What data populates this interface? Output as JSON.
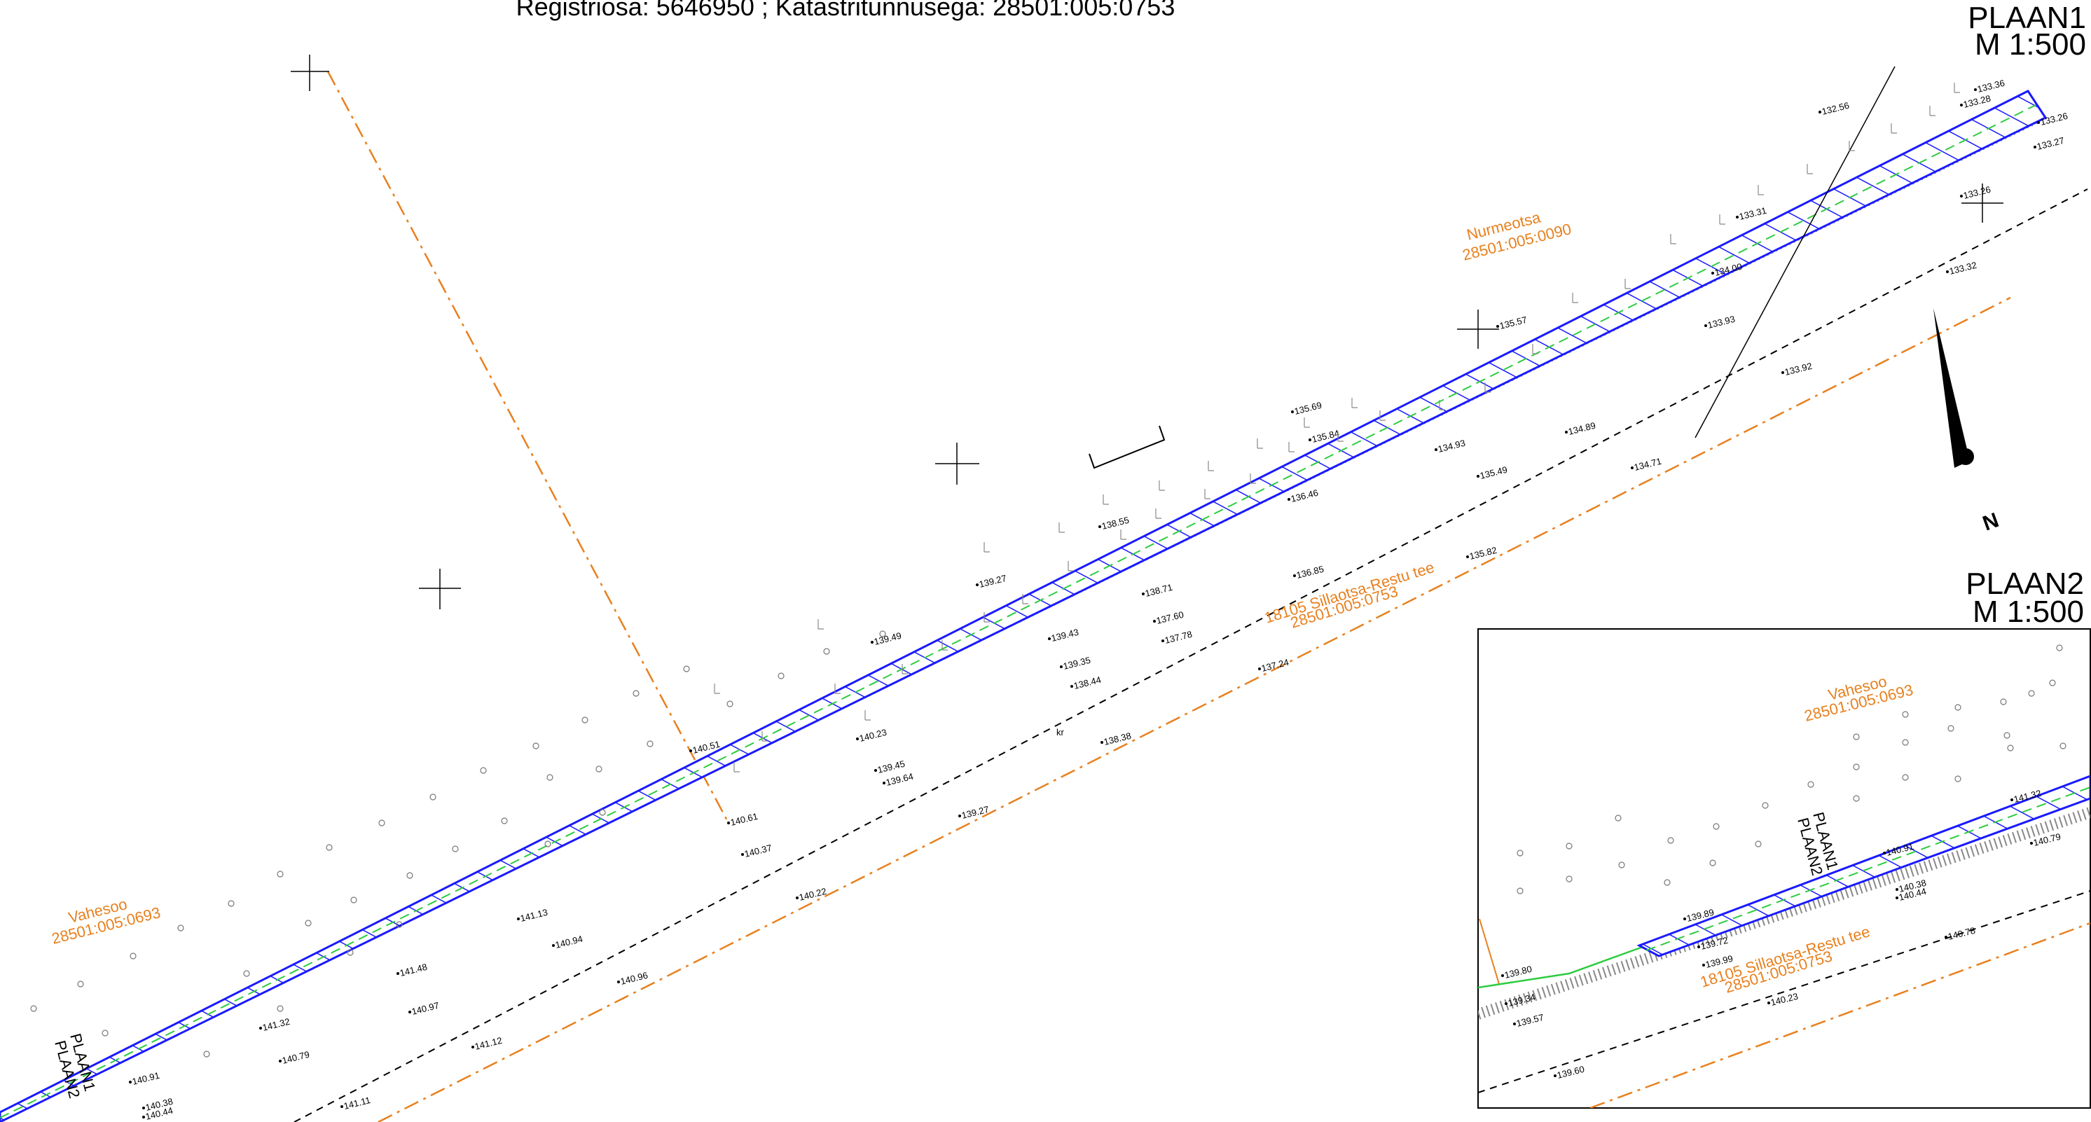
{
  "header": {
    "registry_line": "Registriosa:  5646950 ; Katastritunnusega: 28501:005:0753"
  },
  "plan1": {
    "title": "PLAAN1",
    "scale": "M 1:500"
  },
  "plan2": {
    "title": "PLAAN2",
    "scale": "M 1:500"
  },
  "parcels": {
    "nurmeotsa_name": "Nurmeotsa",
    "nurmeotsa_id": "28501:005:0090",
    "vahesoo_name": "Vahesoo",
    "vahesoo_id": "28501:005:0693",
    "road_name": "18105 Sillaotsa-Restu tee",
    "road_id": "28501:005:0753"
  },
  "north_label": "N",
  "match_line": {
    "top": "PLAAN1",
    "bottom": "PLAAN2"
  },
  "kr_label": "kr",
  "elevations_main": [
    "132.56",
    "133.36",
    "133.28",
    "133.26",
    "133.27",
    "133.31",
    "133.26",
    "133.32",
    "134.00",
    "133.93",
    "135.57",
    "133.92",
    "135.69",
    "135.84",
    "134.93",
    "134.89",
    "135.49",
    "134.71",
    "136.46",
    "138.55",
    "136.85",
    "135.82",
    "139.27",
    "138.71",
    "137.60",
    "137.78",
    "139.43",
    "139.49",
    "139.35",
    "138.44",
    "137.24",
    "140.51",
    "140.23",
    "139.45",
    "139.64",
    "138.38",
    "140.61",
    "140.37",
    "139.27",
    "141.13",
    "140.94",
    "140.22",
    "141.48",
    "140.97",
    "140.96",
    "141.32",
    "140.79",
    "141.12",
    "140.91",
    "140.38",
    "140.44",
    "141.11"
  ],
  "elevations_inset": [
    "141.32",
    "140.79",
    "140.91",
    "140.38",
    "140.44",
    "139.89",
    "139.72",
    "139.99",
    "140.78",
    "139.80",
    "139.34",
    "139.57",
    "140.23",
    "139.60"
  ]
}
